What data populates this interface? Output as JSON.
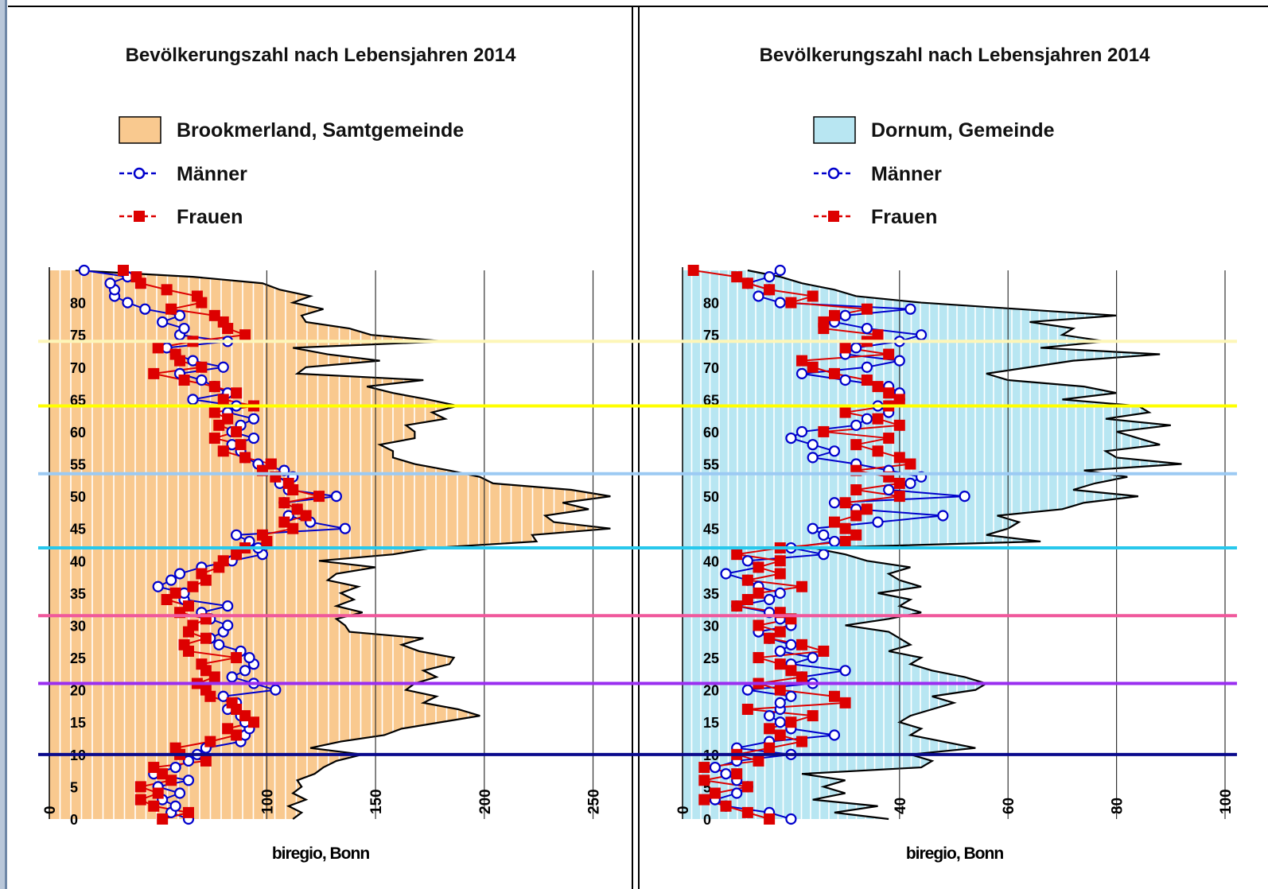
{
  "chart_data": [
    {
      "type": "line",
      "title": "Bevölkerungszahl nach Lebensjahren 2014",
      "credit": "biregio, Bonn",
      "orientation": "horizontal",
      "value_axis": {
        "ticks": [
          0,
          100,
          150,
          200,
          250
        ],
        "range": [
          0,
          267
        ]
      },
      "age_axis": {
        "ticks": [
          0,
          5,
          10,
          15,
          20,
          25,
          30,
          35,
          40,
          45,
          50,
          55,
          60,
          65,
          70,
          75,
          80
        ],
        "range": [
          0,
          85
        ]
      },
      "legend": {
        "area": "Brookmerland, Samtgemeinde",
        "men": "Männer",
        "women": "Frauen"
      },
      "area_color": "#f9c98f",
      "ages": [
        0,
        1,
        2,
        3,
        4,
        5,
        6,
        7,
        8,
        9,
        10,
        11,
        12,
        13,
        14,
        15,
        16,
        17,
        18,
        19,
        20,
        21,
        22,
        23,
        24,
        25,
        26,
        27,
        28,
        29,
        30,
        31,
        32,
        33,
        34,
        35,
        36,
        37,
        38,
        39,
        40,
        41,
        42,
        43,
        44,
        45,
        46,
        47,
        48,
        49,
        50,
        51,
        52,
        53,
        54,
        55,
        56,
        57,
        58,
        59,
        60,
        61,
        62,
        63,
        64,
        65,
        66,
        67,
        68,
        69,
        70,
        71,
        72,
        73,
        74,
        75,
        76,
        77,
        78,
        79,
        80,
        81,
        82,
        83,
        84,
        85
      ],
      "series": [
        {
          "name": "Brookmerland, Samtgemeinde",
          "values": [
            112,
            116,
            110,
            118,
            112,
            116,
            114,
            122,
            126,
            132,
            144,
            120,
            134,
            154,
            162,
            180,
            198,
            188,
            172,
            178,
            164,
            168,
            178,
            172,
            184,
            186,
            170,
            162,
            172,
            138,
            136,
            132,
            144,
            132,
            140,
            134,
            142,
            128,
            132,
            150,
            124,
            158,
            176,
            224,
            222,
            258,
            232,
            228,
            248,
            236,
            258,
            240,
            204,
            198,
            184,
            168,
            158,
            158,
            152,
            168,
            168,
            164,
            182,
            176,
            188,
            174,
            158,
            146,
            172,
            114,
            118,
            152,
            128,
            112,
            182,
            148,
            138,
            118,
            116,
            126,
            112,
            120,
            106,
            98,
            66,
            12
          ]
        },
        {
          "name": "Männer",
          "values": [
            64,
            56,
            58,
            52,
            60,
            50,
            64,
            48,
            58,
            64,
            68,
            72,
            88,
            90,
            92,
            90,
            88,
            82,
            86,
            80,
            104,
            94,
            84,
            90,
            94,
            92,
            88,
            78,
            74,
            80,
            82,
            74,
            70,
            82,
            62,
            62,
            50,
            56,
            60,
            70,
            84,
            98,
            96,
            92,
            86,
            136,
            120,
            110,
            114,
            108,
            132,
            110,
            106,
            112,
            108,
            96,
            90,
            88,
            84,
            94,
            84,
            88,
            94,
            82,
            86,
            66,
            82,
            76,
            70,
            60,
            80,
            66,
            58,
            54,
            82,
            60,
            62,
            52,
            60,
            44,
            36,
            30,
            30,
            28,
            36,
            16
          ]
        },
        {
          "name": "Frauen",
          "values": [
            52,
            64,
            48,
            42,
            50,
            42,
            56,
            52,
            48,
            72,
            60,
            58,
            74,
            86,
            82,
            94,
            90,
            86,
            84,
            74,
            72,
            68,
            76,
            72,
            70,
            86,
            64,
            62,
            72,
            64,
            66,
            72,
            60,
            64,
            54,
            58,
            66,
            72,
            70,
            78,
            80,
            86,
            90,
            100,
            98,
            112,
            108,
            118,
            114,
            108,
            124,
            112,
            110,
            104,
            98,
            102,
            90,
            80,
            88,
            76,
            86,
            78,
            82,
            76,
            94,
            80,
            86,
            76,
            62,
            48,
            70,
            60,
            58,
            50,
            66,
            90,
            82,
            80,
            76,
            56,
            70,
            68,
            54,
            42,
            40,
            34
          ]
        }
      ]
    },
    {
      "type": "line",
      "title": "Bevölkerungszahl nach Lebensjahren 2014",
      "credit": "biregio, Bonn",
      "orientation": "horizontal",
      "value_axis": {
        "ticks": [
          0,
          40,
          60,
          80,
          100
        ],
        "range": [
          0,
          100
        ]
      },
      "age_axis": {
        "ticks": [
          0,
          5,
          10,
          15,
          20,
          25,
          30,
          35,
          40,
          45,
          50,
          55,
          60,
          65,
          70,
          75,
          80
        ],
        "range": [
          0,
          85
        ]
      },
      "legend": {
        "area": "Dornum, Gemeinde",
        "men": "Männer",
        "women": "Frauen"
      },
      "area_color": "#b8e6f2",
      "ages": [
        0,
        1,
        2,
        3,
        4,
        5,
        6,
        7,
        8,
        9,
        10,
        11,
        12,
        13,
        14,
        15,
        16,
        17,
        18,
        19,
        20,
        21,
        22,
        23,
        24,
        25,
        26,
        27,
        28,
        29,
        30,
        31,
        32,
        33,
        34,
        35,
        36,
        37,
        38,
        39,
        40,
        41,
        42,
        43,
        44,
        45,
        46,
        47,
        48,
        49,
        50,
        51,
        52,
        53,
        54,
        55,
        56,
        57,
        58,
        59,
        60,
        61,
        62,
        63,
        64,
        65,
        66,
        67,
        68,
        69,
        70,
        71,
        72,
        73,
        74,
        75,
        76,
        77,
        78,
        79,
        80,
        81,
        82,
        83,
        84,
        85
      ],
      "series": [
        {
          "name": "Dornum, Gemeinde",
          "values": [
            38,
            28,
            36,
            24,
            30,
            26,
            30,
            22,
            44,
            46,
            42,
            54,
            48,
            42,
            44,
            40,
            42,
            46,
            50,
            46,
            54,
            56,
            52,
            46,
            42,
            44,
            38,
            42,
            40,
            38,
            30,
            38,
            44,
            40,
            42,
            36,
            44,
            40,
            38,
            42,
            34,
            30,
            24,
            66,
            56,
            60,
            62,
            58,
            70,
            74,
            84,
            72,
            76,
            82,
            74,
            92,
            80,
            78,
            88,
            84,
            80,
            90,
            78,
            86,
            84,
            70,
            80,
            74,
            60,
            56,
            64,
            72,
            88,
            66,
            78,
            70,
            72,
            64,
            80,
            62,
            44,
            32,
            28,
            22,
            18,
            12
          ]
        },
        {
          "name": "Männer",
          "values": [
            20,
            16,
            8,
            6,
            10,
            12,
            10,
            8,
            6,
            10,
            20,
            10,
            16,
            28,
            20,
            18,
            16,
            18,
            18,
            20,
            12,
            24,
            22,
            30,
            20,
            24,
            18,
            20,
            16,
            14,
            20,
            18,
            16,
            10,
            16,
            18,
            14,
            12,
            8,
            14,
            12,
            26,
            20,
            28,
            26,
            24,
            36,
            48,
            32,
            28,
            52,
            38,
            42,
            44,
            38,
            32,
            24,
            28,
            24,
            20,
            22,
            32,
            34,
            38,
            36,
            40,
            40,
            38,
            30,
            22,
            34,
            40,
            30,
            32,
            40,
            44,
            34,
            28,
            30,
            42,
            18,
            14,
            16,
            12,
            16,
            18
          ]
        },
        {
          "name": "Frauen",
          "values": [
            16,
            12,
            8,
            4,
            6,
            12,
            4,
            10,
            4,
            14,
            10,
            16,
            22,
            18,
            16,
            20,
            24,
            12,
            30,
            28,
            18,
            14,
            22,
            20,
            18,
            14,
            26,
            22,
            16,
            18,
            14,
            20,
            18,
            10,
            12,
            14,
            22,
            12,
            18,
            14,
            18,
            10,
            18,
            30,
            32,
            30,
            28,
            32,
            34,
            30,
            40,
            32,
            40,
            38,
            32,
            42,
            40,
            36,
            32,
            38,
            26,
            40,
            36,
            30,
            38,
            40,
            38,
            36,
            34,
            28,
            24,
            22,
            38,
            30,
            34,
            36,
            26,
            26,
            28,
            34,
            20,
            24,
            16,
            12,
            10,
            2
          ]
        }
      ]
    }
  ],
  "colors": {
    "men": "#0000cc",
    "women": "#dd0000",
    "grid": "#ffffff",
    "axis": "#000000"
  },
  "overlay_lines": [
    {
      "age": 74,
      "color": "#fdf6b8"
    },
    {
      "age": 64,
      "color": "#ffff00"
    },
    {
      "age": 53.5,
      "color": "#9ccaf3"
    },
    {
      "age": 42,
      "color": "#28c8ec"
    },
    {
      "age": 31.5,
      "color": "#f0589c"
    },
    {
      "age": 21,
      "color": "#9a2ef0"
    },
    {
      "age": 10,
      "color": "#0a0a8c"
    }
  ]
}
